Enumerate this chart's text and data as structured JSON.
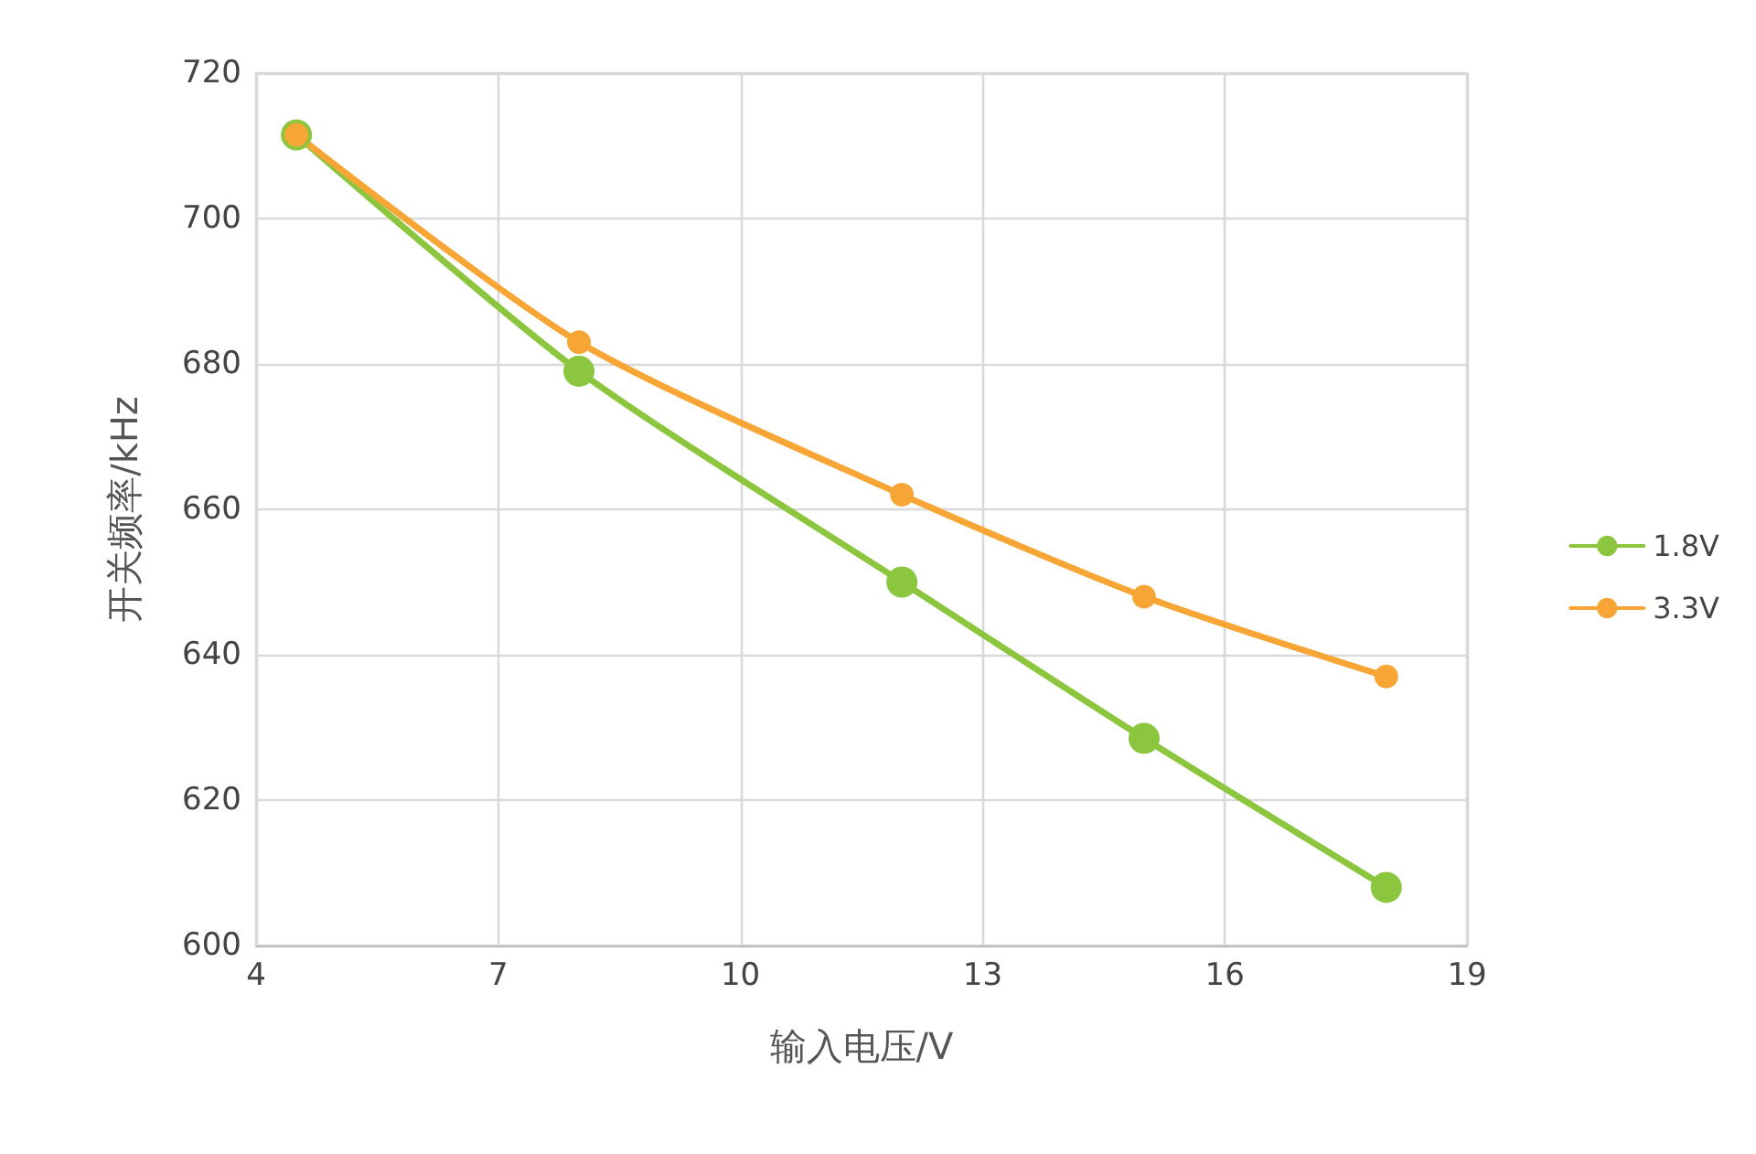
{
  "chart_data": {
    "type": "line",
    "xlabel": "输入电压/V",
    "ylabel": "开关频率/kHz",
    "x": [
      4.5,
      8,
      12,
      15,
      18
    ],
    "series": [
      {
        "name": "1.8V",
        "color": "#8cc63f",
        "values": [
          711.5,
          679,
          650,
          628.5,
          608
        ]
      },
      {
        "name": "3.3V",
        "color": "#f7a535",
        "values": [
          711.5,
          683,
          662,
          648,
          637
        ]
      }
    ],
    "xlim": [
      4,
      19
    ],
    "xticks": [
      4,
      7,
      10,
      13,
      16,
      19
    ],
    "ylim": [
      600,
      720
    ],
    "yticks": [
      600,
      620,
      640,
      660,
      680,
      700,
      720
    ],
    "grid": true,
    "legend": "right",
    "marker": "circle",
    "line_style": "solid"
  }
}
